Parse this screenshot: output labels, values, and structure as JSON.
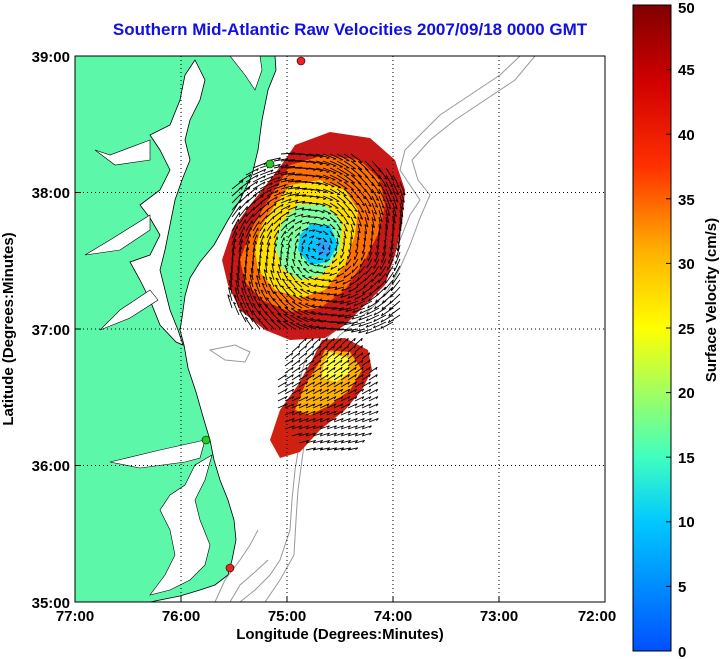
{
  "title": "Southern Mid-Atlantic Raw Velocities 2007/09/18 0000 GMT",
  "x_axis": {
    "label": "Longitude (Degrees:Minutes)",
    "ticks": [
      "77:00",
      "76:00",
      "75:00",
      "74:00",
      "73:00",
      "72:00"
    ]
  },
  "y_axis": {
    "label": "Latitude (Degrees:Minutes)",
    "ticks": [
      "39:00",
      "38:00",
      "37:00",
      "36:00",
      "35:00"
    ]
  },
  "colorbar": {
    "label": "Surface Velocity (cm/s)",
    "ticks": [
      "50",
      "45",
      "40",
      "35",
      "30",
      "25",
      "20",
      "15",
      "10",
      "5",
      "0"
    ],
    "colors": [
      "#0050ff",
      "#00c8ff",
      "#40ffbf",
      "#bfff40",
      "#ffc800",
      "#ff5000",
      "#c80000",
      "#800000"
    ]
  },
  "colors": {
    "land": "#5cf7a8",
    "title": "#1010e6",
    "station_green": "#22cc22",
    "station_red": "#ee2222",
    "bathymetry": "#999999"
  },
  "chart_data": {
    "type": "map",
    "title": "Southern Mid-Atlantic Raw Velocities 2007/09/18 0000 GMT",
    "xlabel": "Longitude (Degrees:Minutes)",
    "ylabel": "Latitude (Degrees:Minutes)",
    "xlim": [
      -77.0,
      -72.0
    ],
    "ylim": [
      35.0,
      39.0
    ],
    "grid": true,
    "colorbar_range": [
      0,
      50
    ],
    "colorbar_units": "cm/s",
    "stations": [
      {
        "lon": -74.87,
        "lat": 38.96,
        "color": "red"
      },
      {
        "lon": -75.16,
        "lat": 38.23,
        "color": "green"
      },
      {
        "lon": -75.97,
        "lat": 36.19,
        "color": "green"
      },
      {
        "lon": -75.5,
        "lat": 35.24,
        "color": "red"
      }
    ]
  }
}
